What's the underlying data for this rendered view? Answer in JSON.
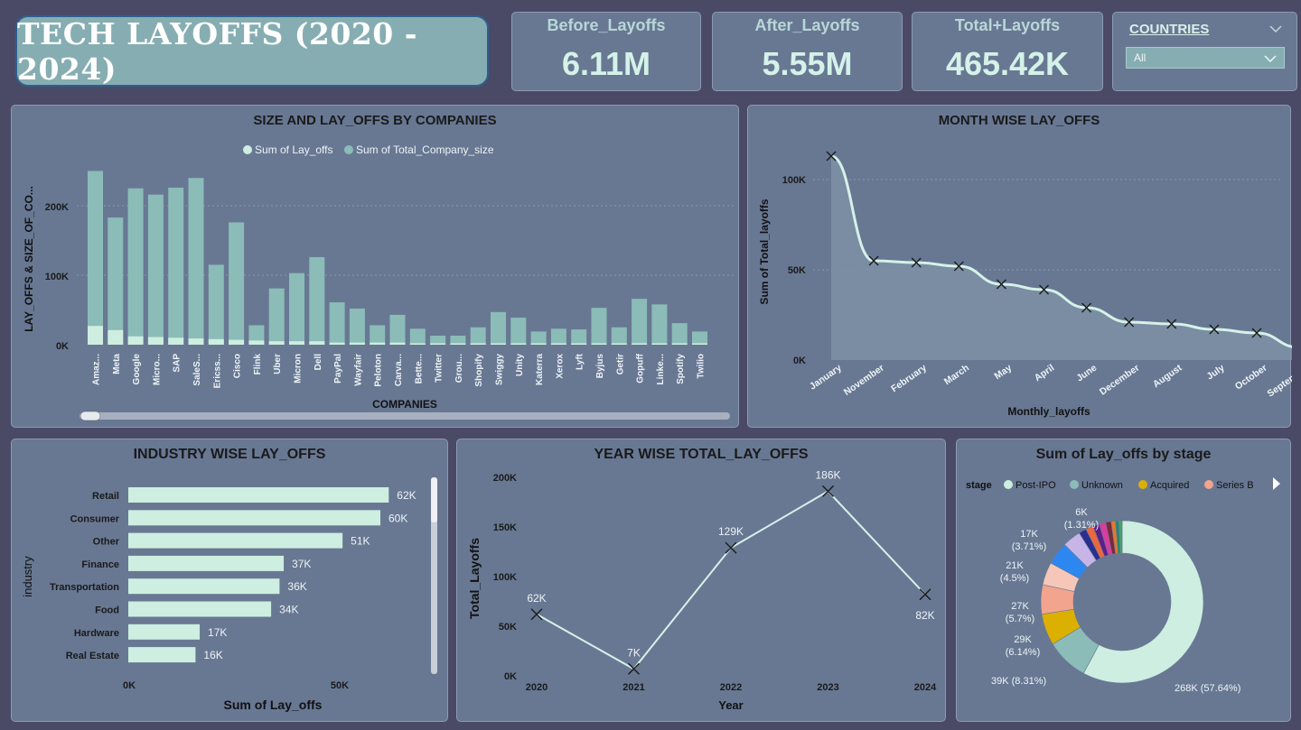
{
  "header": {
    "title": "TECH LAYOFFS (2020 - 2024)"
  },
  "kpis": [
    {
      "label": "Before_Layoffs",
      "value": "6.11M"
    },
    {
      "label": "After_Layoffs",
      "value": "5.55M"
    },
    {
      "label": "Total+Layoffs",
      "value": "465.42K"
    }
  ],
  "slicer": {
    "label": "COUNTRIES",
    "value": "All"
  },
  "colors": {
    "layoffs": "#cdeee0",
    "company_size": "#8bbcb8",
    "area_fill": "#7e90a6",
    "line": "#d4f2e8"
  },
  "charts": {
    "companies": {
      "title": "SIZE AND LAY_OFFS BY COMPANIES",
      "xlabel": "COMPANIES",
      "ylabel": "LAY_OFFS & SIZE_OF_CO...",
      "legend": [
        "Sum of Lay_offs",
        "Sum of Total_Company_size"
      ],
      "yticks": [
        "0K",
        "100K",
        "200K"
      ]
    },
    "month": {
      "title": "MONTH WISE LAY_OFFS",
      "xlabel": "Monthly_layoffs",
      "ylabel": "Sum of Total_layoffs",
      "yticks": [
        "0K",
        "50K",
        "100K"
      ]
    },
    "industry": {
      "title": "INDUSTRY WISE LAY_OFFS",
      "xlabel": "Sum of Lay_offs",
      "ylabel": "industry",
      "xticks": [
        "0K",
        "50K"
      ]
    },
    "year": {
      "title": "YEAR WISE TOTAL_LAY_OFFS",
      "xlabel": "Year",
      "ylabel": "Total_Layoffs",
      "yticks": [
        "0K",
        "50K",
        "100K",
        "150K",
        "200K"
      ]
    },
    "stage": {
      "title": "Sum of Lay_offs by stage",
      "legend_title": "stage",
      "legend": [
        "Post-IPO",
        "Unknown",
        "Acquired",
        "Series B"
      ]
    }
  },
  "chart_data": [
    {
      "type": "bar",
      "title": "SIZE AND LAY_OFFS BY COMPANIES",
      "xlabel": "COMPANIES",
      "ylabel": "LAY_OFFS & SIZE_OF_CO...",
      "ylim": [
        0,
        260000
      ],
      "categories": [
        "Amaz...",
        "Meta",
        "Google",
        "Micro...",
        "SAP",
        "SaleS...",
        "Ericss...",
        "Cisco",
        "Flink",
        "Uber",
        "Micron",
        "Dell",
        "PayPal",
        "Wayfair",
        "Peloton",
        "Carva...",
        "Bette...",
        "Twitter",
        "Grou...",
        "Shopify",
        "Swiggy",
        "Unity",
        "Katerra",
        "Xerox",
        "Lyft",
        "Byjus",
        "Getir",
        "Gopuff",
        "Linke...",
        "Spotify",
        "Twilio"
      ],
      "series": [
        {
          "name": "Sum of Lay_offs",
          "values": [
            27000,
            21000,
            12000,
            11000,
            10000,
            9000,
            8000,
            7000,
            6000,
            5000,
            5000,
            5000,
            3000,
            3000,
            3000,
            3000,
            2000,
            2000,
            2000,
            2000,
            2000,
            2000,
            2000,
            2000,
            2000,
            2000,
            2000,
            2000,
            2000,
            2000,
            2000
          ]
        },
        {
          "name": "Sum of Total_Company_size",
          "values": [
            250000,
            183000,
            225000,
            216000,
            226000,
            240000,
            115000,
            176000,
            28000,
            81000,
            103000,
            126000,
            61000,
            52000,
            28000,
            43000,
            23000,
            13000,
            13000,
            25000,
            47000,
            39000,
            19000,
            23000,
            22000,
            53000,
            25000,
            66000,
            58000,
            31000,
            19000
          ]
        }
      ],
      "grid": true,
      "legend_position": "top"
    },
    {
      "type": "area",
      "title": "MONTH WISE LAY_OFFS",
      "xlabel": "Monthly_layoffs",
      "ylabel": "Sum of Total_layoffs",
      "ylim": [
        0,
        120000
      ],
      "categories": [
        "January",
        "November",
        "February",
        "March",
        "May",
        "April",
        "June",
        "December",
        "August",
        "July",
        "October",
        "September"
      ],
      "values": [
        113000,
        55000,
        54000,
        52000,
        42000,
        39000,
        29000,
        21000,
        20000,
        17000,
        15000,
        7000
      ],
      "grid": true
    },
    {
      "type": "bar",
      "orientation": "horizontal",
      "title": "INDUSTRY WISE LAY_OFFS",
      "xlabel": "Sum of Lay_offs",
      "ylabel": "industry",
      "categories": [
        "Retail",
        "Consumer",
        "Other",
        "Finance",
        "Transportation",
        "Food",
        "Hardware",
        "Real Estate"
      ],
      "values": [
        62000,
        60000,
        51000,
        37000,
        36000,
        34000,
        17000,
        16000
      ],
      "labels": [
        "62K",
        "60K",
        "51K",
        "37K",
        "36K",
        "34K",
        "17K",
        "16K"
      ],
      "xlim": [
        0,
        70000
      ]
    },
    {
      "type": "line",
      "title": "YEAR WISE TOTAL_LAY_OFFS",
      "xlabel": "Year",
      "ylabel": "Total_Layoffs",
      "x": [
        "2020",
        "2021",
        "2022",
        "2023",
        "2024"
      ],
      "values": [
        62000,
        7000,
        129000,
        186000,
        82000
      ],
      "labels": [
        "62K",
        "7K",
        "129K",
        "186K",
        "82K"
      ],
      "ylim": [
        0,
        200000
      ]
    },
    {
      "type": "pie",
      "title": "Sum of Lay_offs by stage",
      "slices": [
        {
          "name": "Post-IPO",
          "value": 268000,
          "label": "268K (57.64%)",
          "color": "#cdeee0"
        },
        {
          "name": "Unknown",
          "value": 39000,
          "label": "39K (8.31%)",
          "color": "#8bbcb8"
        },
        {
          "name": "Acquired",
          "value": 29000,
          "label": "29K (6.14%)",
          "color": "#dcb000"
        },
        {
          "name": "Series B",
          "value": 27000,
          "label": "27K (5.7%)",
          "color": "#f2a48f"
        },
        {
          "name": "",
          "value": 21000,
          "label": "21K (4.5%)",
          "color": "#f6c7b9"
        },
        {
          "name": "",
          "value": 21000,
          "label": "",
          "color": "#2d87f0"
        },
        {
          "name": "",
          "value": 17000,
          "label": "17K (3.71%)",
          "color": "#c7b5e8"
        },
        {
          "name": "",
          "value": 7000,
          "label": "",
          "color": "#2a2f8f"
        },
        {
          "name": "",
          "value": 7000,
          "label": "",
          "color": "#e8683f"
        },
        {
          "name": "",
          "value": 6000,
          "label": "6K (1.31%)",
          "color": "#5d1f8a"
        },
        {
          "name": "",
          "value": 6000,
          "label": "",
          "color": "#d63ea0"
        },
        {
          "name": "",
          "value": 5000,
          "label": "",
          "color": "#7a2a3c"
        },
        {
          "name": "",
          "value": 4000,
          "label": "",
          "color": "#e07a2f"
        },
        {
          "name": "",
          "value": 3000,
          "label": "",
          "color": "#1f8a6e"
        },
        {
          "name": "",
          "value": 3000,
          "label": "",
          "color": "#4aa06a"
        }
      ],
      "legend_position": "top"
    }
  ]
}
